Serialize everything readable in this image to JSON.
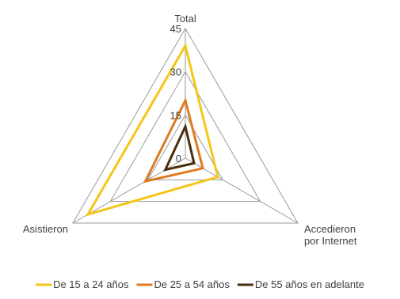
{
  "chart_data": {
    "type": "radar",
    "categories": [
      "Total",
      "Accedieron por Internet",
      "Asistieron"
    ],
    "category_lines": [
      [
        "Total"
      ],
      [
        "Accedieron",
        "por Internet"
      ],
      [
        "Asistieron"
      ]
    ],
    "axis": {
      "min": 0,
      "max": 45,
      "ticks": [
        0,
        15,
        30,
        45
      ]
    },
    "grid": true,
    "legend_position": "bottom",
    "series": [
      {
        "name": "De 15 a 24 años",
        "color": "#f5c518",
        "values": [
          39,
          13,
          39
        ]
      },
      {
        "name": "De 25 a 54 años",
        "color": "#e07a1f",
        "values": [
          20,
          7,
          16
        ]
      },
      {
        "name": "De 55 años en adelante",
        "color": "#4a2d0c",
        "values": [
          11,
          3.5,
          8
        ]
      }
    ]
  }
}
